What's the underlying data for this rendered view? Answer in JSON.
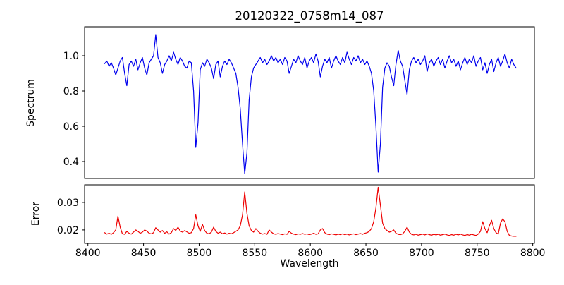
{
  "figure": {
    "title": "20120322_0758m14_087",
    "xlabel": "Wavelength",
    "top_ylabel": "Spectrum",
    "bottom_ylabel": "Error"
  },
  "chart_data": [
    {
      "type": "line",
      "title": "20120322_0758m14_087",
      "ylabel": "Spectrum",
      "series_name": "spectrum",
      "color": "#0000ee",
      "grid": false,
      "legend": "none",
      "x_start": 8415,
      "x_step": 2,
      "xlim": [
        8397,
        8801.5
      ],
      "ylim": [
        0.304,
        1.164
      ],
      "yticks": [
        "1.0",
        "0.8",
        "0.6",
        "0.4"
      ],
      "ytick_values": [
        1.0,
        0.8,
        0.6,
        0.4
      ],
      "absorption_line_centers": [
        8498,
        8542,
        8662
      ],
      "values": [
        0.955,
        0.97,
        0.94,
        0.96,
        0.93,
        0.89,
        0.93,
        0.97,
        0.99,
        0.9,
        0.83,
        0.95,
        0.97,
        0.94,
        0.98,
        0.92,
        0.96,
        0.99,
        0.93,
        0.89,
        0.96,
        0.98,
        1.0,
        1.12,
        0.99,
        0.96,
        0.9,
        0.95,
        0.97,
        1.0,
        0.97,
        1.02,
        0.98,
        0.95,
        0.99,
        0.97,
        0.94,
        0.93,
        0.97,
        0.96,
        0.8,
        0.48,
        0.62,
        0.92,
        0.96,
        0.94,
        0.98,
        0.96,
        0.93,
        0.87,
        0.95,
        0.97,
        0.88,
        0.94,
        0.97,
        0.95,
        0.98,
        0.96,
        0.93,
        0.9,
        0.82,
        0.7,
        0.5,
        0.33,
        0.45,
        0.75,
        0.88,
        0.93,
        0.95,
        0.97,
        0.99,
        0.96,
        0.98,
        0.95,
        0.97,
        1.0,
        0.97,
        0.99,
        0.96,
        0.98,
        0.95,
        0.99,
        0.97,
        0.9,
        0.94,
        0.98,
        0.96,
        1.0,
        0.97,
        0.95,
        0.99,
        0.93,
        0.97,
        0.99,
        0.96,
        1.01,
        0.97,
        0.88,
        0.94,
        0.98,
        0.96,
        0.99,
        0.93,
        0.97,
        1.0,
        0.97,
        0.95,
        0.99,
        0.96,
        1.02,
        0.98,
        0.95,
        0.99,
        0.97,
        1.0,
        0.96,
        0.98,
        0.95,
        0.97,
        0.94,
        0.9,
        0.8,
        0.6,
        0.34,
        0.5,
        0.82,
        0.93,
        0.96,
        0.94,
        0.88,
        0.83,
        0.95,
        1.03,
        0.97,
        0.94,
        0.86,
        0.78,
        0.92,
        0.97,
        0.99,
        0.96,
        0.98,
        0.95,
        0.97,
        1.0,
        0.91,
        0.96,
        0.98,
        0.94,
        0.97,
        0.99,
        0.95,
        0.98,
        0.93,
        0.97,
        1.0,
        0.96,
        0.98,
        0.94,
        0.97,
        0.92,
        0.96,
        0.99,
        0.95,
        0.98,
        0.96,
        1.0,
        0.94,
        0.97,
        0.99,
        0.92,
        0.96,
        0.9,
        0.95,
        0.98,
        0.91,
        0.96,
        0.99,
        0.94,
        0.97,
        1.01,
        0.96,
        0.93,
        0.98,
        0.95,
        0.93
      ]
    },
    {
      "type": "line",
      "ylabel": "Error",
      "xlabel": "Wavelength",
      "series_name": "error",
      "color": "#ee0000",
      "grid": false,
      "legend": "none",
      "x_start": 8415,
      "x_step": 2,
      "xlim": [
        8397,
        8801.5
      ],
      "ylim": [
        0.0151,
        0.0364
      ],
      "yticks": [
        "0.03",
        "0.02"
      ],
      "ytick_values": [
        0.03,
        0.02
      ],
      "xticks": [
        "8400",
        "8450",
        "8500",
        "8550",
        "8600",
        "8650",
        "8700",
        "8750",
        "8800"
      ],
      "xtick_values": [
        8400,
        8450,
        8500,
        8550,
        8600,
        8650,
        8700,
        8750,
        8800
      ],
      "values": [
        0.019,
        0.0185,
        0.0188,
        0.0184,
        0.019,
        0.02,
        0.025,
        0.021,
        0.0186,
        0.0184,
        0.0195,
        0.0188,
        0.0185,
        0.0192,
        0.02,
        0.0195,
        0.0188,
        0.0192,
        0.02,
        0.0196,
        0.0188,
        0.0186,
        0.019,
        0.0208,
        0.02,
        0.0192,
        0.0198,
        0.0188,
        0.0193,
        0.0185,
        0.019,
        0.0205,
        0.0198,
        0.021,
        0.0196,
        0.0192,
        0.0198,
        0.0193,
        0.0188,
        0.019,
        0.0205,
        0.0255,
        0.0215,
        0.0195,
        0.022,
        0.0198,
        0.0188,
        0.0186,
        0.0192,
        0.021,
        0.0195,
        0.0188,
        0.0192,
        0.0186,
        0.0189,
        0.0185,
        0.0188,
        0.0186,
        0.019,
        0.0195,
        0.02,
        0.0215,
        0.0255,
        0.0338,
        0.026,
        0.0215,
        0.0198,
        0.0192,
        0.0205,
        0.0195,
        0.0188,
        0.0185,
        0.0187,
        0.0184,
        0.02,
        0.0192,
        0.0186,
        0.0184,
        0.0187,
        0.0185,
        0.0183,
        0.0186,
        0.0184,
        0.0195,
        0.0188,
        0.0185,
        0.0183,
        0.0186,
        0.0184,
        0.0187,
        0.0184,
        0.0186,
        0.0183,
        0.0185,
        0.0188,
        0.0184,
        0.0186,
        0.02,
        0.0205,
        0.019,
        0.0185,
        0.0183,
        0.0186,
        0.0184,
        0.0182,
        0.0185,
        0.0183,
        0.0186,
        0.0183,
        0.0185,
        0.0182,
        0.0184,
        0.0186,
        0.0183,
        0.0185,
        0.0187,
        0.0184,
        0.0188,
        0.019,
        0.0195,
        0.0205,
        0.023,
        0.028,
        0.0355,
        0.029,
        0.0225,
        0.0205,
        0.0198,
        0.0192,
        0.0195,
        0.02,
        0.0188,
        0.0184,
        0.0183,
        0.0186,
        0.0195,
        0.021,
        0.0192,
        0.0184,
        0.0182,
        0.0184,
        0.0181,
        0.0183,
        0.0185,
        0.0182,
        0.0186,
        0.0183,
        0.0181,
        0.0184,
        0.0182,
        0.0184,
        0.0181,
        0.0183,
        0.0185,
        0.0182,
        0.018,
        0.0183,
        0.0181,
        0.0184,
        0.0182,
        0.0185,
        0.0182,
        0.018,
        0.0183,
        0.0181,
        0.0184,
        0.0182,
        0.018,
        0.0185,
        0.0195,
        0.023,
        0.0205,
        0.019,
        0.0215,
        0.0235,
        0.0205,
        0.019,
        0.0185,
        0.0225,
        0.024,
        0.023,
        0.0195,
        0.018,
        0.0178,
        0.0177,
        0.0177
      ]
    }
  ]
}
